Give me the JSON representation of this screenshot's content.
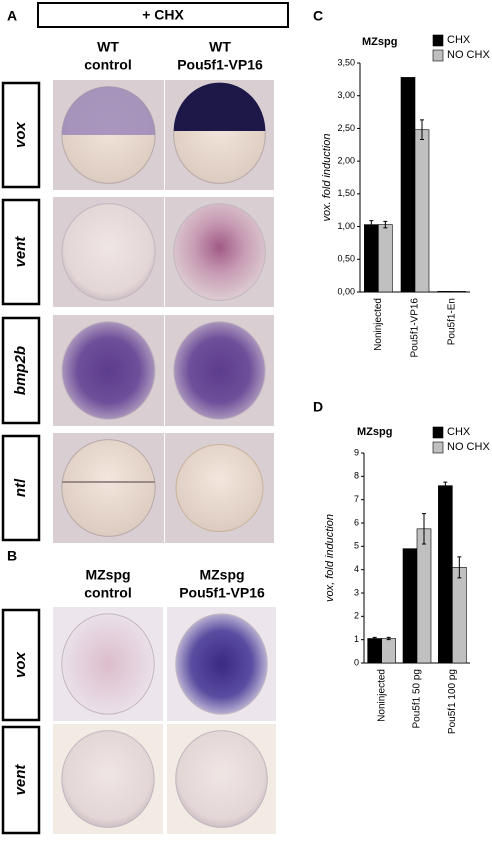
{
  "figure": {
    "panel_labels": [
      "A",
      "B",
      "C",
      "D"
    ],
    "treatment": "+ CHX",
    "panel_a": {
      "columns": [
        [
          "WT",
          "control"
        ],
        [
          "WT",
          "Pou5f1-VP16"
        ]
      ],
      "rows": [
        "vox",
        "vent",
        "bmp2b",
        "ntl"
      ]
    },
    "panel_b": {
      "columns": [
        [
          "MZspg",
          "control"
        ],
        [
          "MZspg",
          "Pou5f1-VP16"
        ]
      ],
      "rows": [
        "vox",
        "vent"
      ]
    }
  },
  "chart_data": [
    {
      "type": "bar",
      "title": "MZspg",
      "y_label": "vox. fold induction",
      "categories": [
        "Noninjected",
        "Pou5f1-VP16",
        "Pou5f1-En"
      ],
      "series": [
        {
          "name": "CHX",
          "color": "#000000",
          "values": [
            1.03,
            3.28,
            0.01
          ],
          "errors": [
            0.06,
            null,
            null
          ]
        },
        {
          "name": "NO CHX",
          "color": "#c0c0c0",
          "values": [
            1.03,
            2.48,
            0.01
          ],
          "errors": [
            0.05,
            0.15,
            null
          ]
        }
      ],
      "ylim": [
        0,
        3.5
      ],
      "yticks": [
        {
          "value": 0,
          "label": "0,00"
        },
        {
          "value": 0.5,
          "label": "0,50"
        },
        {
          "value": 1,
          "label": "1,00"
        },
        {
          "value": 1.5,
          "label": "1,50"
        },
        {
          "value": 2,
          "label": "2,00"
        },
        {
          "value": 2.5,
          "label": "2,50"
        },
        {
          "value": 3,
          "label": "3,00"
        },
        {
          "value": 3.5,
          "label": "3,50"
        }
      ]
    },
    {
      "type": "bar",
      "title": "MZspg",
      "y_label": "vox, fold induction",
      "categories": [
        "Noninjected",
        "Pou5f1 50 pg",
        "Pou5f1 100 pg"
      ],
      "series": [
        {
          "name": "CHX",
          "color": "#000000",
          "values": [
            1.05,
            4.9,
            7.6
          ],
          "errors": [
            0.05,
            null,
            0.15
          ]
        },
        {
          "name": "NO CHX",
          "color": "#c0c0c0",
          "values": [
            1.05,
            5.75,
            4.1
          ],
          "errors": [
            0.05,
            0.65,
            0.45
          ]
        }
      ],
      "ylim": [
        0,
        9
      ],
      "yticks": [
        0,
        1,
        2,
        3,
        4,
        5,
        6,
        7,
        8,
        9
      ]
    }
  ]
}
